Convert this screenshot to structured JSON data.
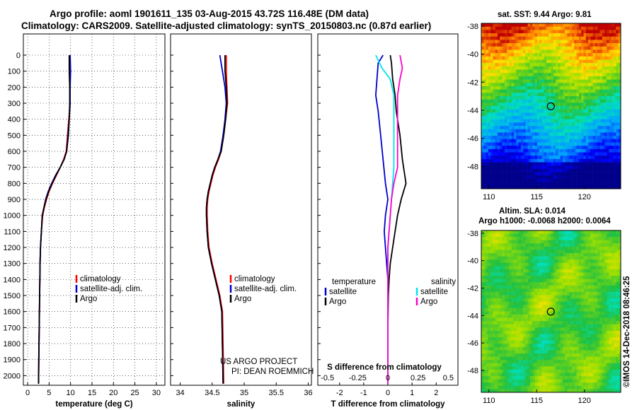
{
  "header": {
    "title_line1": "Argo profile: aoml 1901611_135 03-Aug-2015 43.72S 116.48E (DM data)",
    "title_line2": "Climatology: CARS2009. Satellite-adjusted climatology: synTS_20150803.nc (0.87d earlier)"
  },
  "colors": {
    "climatology": "#ff0000",
    "satellite": "#0000cc",
    "argo": "#000000",
    "sal_satellite": "#00e5ee",
    "sal_argo": "#ff00cc"
  },
  "credit": {
    "line1": "US ARGO PROJECT",
    "line2": "PI: DEAN ROEMMICH"
  },
  "stamp": "©IMOS 14-Dec-2018 08:46:25",
  "chart_data": [
    {
      "type": "line",
      "xlabel": "temperature (deg C)",
      "ylabel": "",
      "xlim": [
        -1,
        32
      ],
      "ylim": [
        2060,
        0
      ],
      "xticks": [
        "0",
        "5",
        "10",
        "15",
        "20",
        "25",
        "30"
      ],
      "xtick_values": [
        0,
        5,
        10,
        15,
        20,
        25,
        30
      ],
      "yticks": [
        "0",
        "100",
        "200",
        "300",
        "400",
        "500",
        "600",
        "700",
        "800",
        "900",
        "1000",
        "1100",
        "1200",
        "1300",
        "1400",
        "1500",
        "1600",
        "1700",
        "1800",
        "1900",
        "2000"
      ],
      "grid": true,
      "legend_position": "bottom-right",
      "series": [
        {
          "name": "climatology",
          "color": "#ff0000",
          "x": [
            9.8,
            9.8,
            9.9,
            9.9,
            9.6,
            9.3,
            9.0,
            8.4,
            7.6,
            6.7,
            5.8,
            5.0,
            4.4,
            3.9,
            3.5,
            3.2,
            3.0,
            2.9,
            2.8,
            2.7,
            2.6,
            2.55
          ],
          "y": [
            0,
            100,
            200,
            300,
            400,
            500,
            600,
            650,
            700,
            750,
            800,
            850,
            900,
            950,
            1000,
            1100,
            1200,
            1300,
            1500,
            1700,
            1900,
            2050
          ]
        },
        {
          "name": "satellite-adj. clim.",
          "color": "#0000cc",
          "x": [
            9.9,
            10.0,
            9.9,
            9.9,
            9.7,
            9.4,
            9.1,
            8.5,
            7.6,
            6.5,
            5.6,
            4.8,
            4.2,
            3.8,
            3.4,
            3.2,
            3.0,
            2.9,
            2.8,
            2.7,
            2.6,
            2.55
          ],
          "y": [
            0,
            100,
            200,
            300,
            400,
            500,
            600,
            650,
            700,
            750,
            800,
            850,
            900,
            950,
            1000,
            1100,
            1200,
            1300,
            1500,
            1700,
            1900,
            2050
          ]
        },
        {
          "name": "Argo",
          "color": "#000000",
          "x": [
            9.7,
            9.7,
            9.8,
            9.8,
            9.7,
            9.5,
            9.1,
            8.5,
            7.6,
            6.6,
            5.7,
            4.9,
            4.3,
            3.8,
            3.4,
            3.2,
            3.0,
            2.9,
            2.8,
            2.7,
            2.6,
            2.55
          ],
          "y": [
            0,
            100,
            200,
            300,
            400,
            500,
            600,
            650,
            700,
            750,
            800,
            850,
            900,
            950,
            1000,
            1100,
            1200,
            1300,
            1500,
            1700,
            1900,
            2050
          ]
        }
      ]
    },
    {
      "type": "line",
      "xlabel": "salinity",
      "xlim": [
        33.85,
        36.05
      ],
      "ylim": [
        2060,
        0
      ],
      "xticks": [
        "34",
        "34.5",
        "35",
        "35.5",
        "36"
      ],
      "xtick_values": [
        34,
        34.5,
        35,
        35.5,
        36
      ],
      "grid": false,
      "legend_position": "bottom-right",
      "series": [
        {
          "name": "climatology",
          "color": "#ff0000",
          "x": [
            34.72,
            34.72,
            34.73,
            34.74,
            34.71,
            34.68,
            34.64,
            34.6,
            34.55,
            34.51,
            34.48,
            34.45,
            34.43,
            34.42,
            34.42,
            34.43,
            34.45,
            34.5,
            34.56,
            34.62,
            34.66,
            34.68
          ],
          "y": [
            0,
            100,
            200,
            300,
            400,
            500,
            600,
            650,
            700,
            750,
            800,
            850,
            900,
            950,
            1000,
            1100,
            1200,
            1300,
            1400,
            1500,
            1600,
            2050
          ]
        },
        {
          "name": "satellite-adj. clim.",
          "color": "#0000cc",
          "x": [
            34.62,
            34.66,
            34.7,
            34.72,
            34.7,
            34.67,
            34.63,
            34.59,
            34.54,
            34.5,
            34.47,
            34.44,
            34.42,
            34.41,
            34.41,
            34.42,
            34.44,
            34.49,
            34.55,
            34.61,
            34.65,
            34.67
          ],
          "y": [
            0,
            100,
            200,
            300,
            400,
            500,
            600,
            650,
            700,
            750,
            800,
            850,
            900,
            950,
            1000,
            1100,
            1200,
            1300,
            1400,
            1500,
            1600,
            2050
          ]
        },
        {
          "name": "Argo",
          "color": "#000000",
          "x": [
            34.7,
            34.7,
            34.72,
            34.73,
            34.71,
            34.68,
            34.64,
            34.59,
            34.54,
            34.5,
            34.47,
            34.44,
            34.42,
            34.41,
            34.41,
            34.42,
            34.44,
            34.49,
            34.55,
            34.61,
            34.65,
            34.67
          ],
          "y": [
            0,
            100,
            200,
            300,
            400,
            500,
            600,
            650,
            700,
            750,
            800,
            850,
            900,
            950,
            1000,
            1100,
            1200,
            1300,
            1400,
            1500,
            1600,
            2050
          ]
        }
      ]
    },
    {
      "type": "line",
      "xlabel": "T difference from climatology",
      "xlabel_top": "S difference from climatology",
      "xlim": [
        -2.9,
        2.9
      ],
      "ylim": [
        2060,
        0
      ],
      "xticks": [
        "-2",
        "-1",
        "0",
        "1",
        "2"
      ],
      "xtick_values": [
        -2,
        -1,
        0,
        1,
        2
      ],
      "xticks_top": [
        "-0.5",
        "-0.25",
        "0",
        "0.25",
        "0.5"
      ],
      "xticks_top_values": [
        -0.5,
        -0.25,
        0,
        0.25,
        0.5
      ],
      "grid": false,
      "legend_position": "bottom",
      "legend_groups": [
        "temperature",
        "salinity"
      ],
      "series": [
        {
          "name": "satellite",
          "group": "temperature",
          "color": "#0000cc",
          "x": [
            -0.2,
            -0.4,
            -0.45,
            -0.5,
            -0.4,
            -0.3,
            -0.2,
            -0.1,
            0,
            -0.1,
            -0.15,
            -0.1,
            -0.05,
            0.0,
            0.0,
            0.0,
            0.0,
            0.0
          ],
          "y": [
            0,
            50,
            150,
            250,
            350,
            500,
            650,
            800,
            900,
            1000,
            1100,
            1200,
            1300,
            1400,
            1500,
            1700,
            1900,
            2050
          ]
        },
        {
          "name": "Argo",
          "group": "temperature",
          "color": "#000000",
          "x": [
            0.1,
            0.15,
            0.2,
            0.3,
            0.35,
            0.5,
            0.6,
            0.75,
            0.55,
            0.4,
            0.3,
            0.2,
            0.1,
            0.05,
            0.02,
            0.0,
            0.0,
            0.0
          ],
          "y": [
            0,
            50,
            150,
            250,
            350,
            500,
            650,
            800,
            900,
            1000,
            1100,
            1200,
            1300,
            1400,
            1500,
            1700,
            1900,
            2050
          ]
        },
        {
          "name": "satellite",
          "group": "salinity",
          "color": "#00e5ee",
          "x": [
            -0.1,
            -0.05,
            0.02,
            0.05,
            0.05,
            0.05,
            0.05,
            0.04,
            0.03,
            0.02,
            0.01,
            0.0,
            0.0,
            0.0,
            0.0,
            0.0,
            0.0
          ],
          "y": [
            0,
            80,
            150,
            250,
            400,
            550,
            700,
            800,
            900,
            1000,
            1100,
            1200,
            1300,
            1400,
            1500,
            1700,
            2050
          ]
        },
        {
          "name": "Argo",
          "group": "salinity",
          "color": "#ff00cc",
          "x": [
            0.1,
            0.12,
            0.1,
            0.08,
            0.08,
            0.08,
            0.08,
            0.05,
            0.03,
            0.02,
            0.01,
            0.0,
            0.0,
            0.0,
            0.0,
            0.0,
            0.0
          ],
          "y": [
            0,
            80,
            150,
            250,
            400,
            550,
            700,
            800,
            900,
            1000,
            1100,
            1200,
            1300,
            1400,
            1500,
            1700,
            2050
          ]
        }
      ]
    },
    {
      "type": "heatmap",
      "title": "sat. SST: 9.44 Argo: 9.81",
      "xticks": [
        "110",
        "115",
        "120"
      ],
      "yticks": [
        "-38",
        "-40",
        "-42",
        "-44",
        "-46",
        "-48"
      ],
      "xlim": [
        109.2,
        123.8
      ],
      "ylim": [
        -49.6,
        -37.8
      ],
      "marker": {
        "lon": 116.48,
        "lat": -43.72
      }
    },
    {
      "type": "heatmap",
      "title_line1": "Altim. SLA: 0.014",
      "title_line2": "Argo h1000: -0.0068 h2000: 0.0064",
      "xticks": [
        "110",
        "115",
        "120"
      ],
      "yticks": [
        "-38",
        "-40",
        "-42",
        "-44",
        "-46",
        "-48"
      ],
      "xlim": [
        109.2,
        123.8
      ],
      "ylim": [
        -49.6,
        -37.8
      ],
      "marker": {
        "lon": 116.48,
        "lat": -43.72
      }
    }
  ]
}
